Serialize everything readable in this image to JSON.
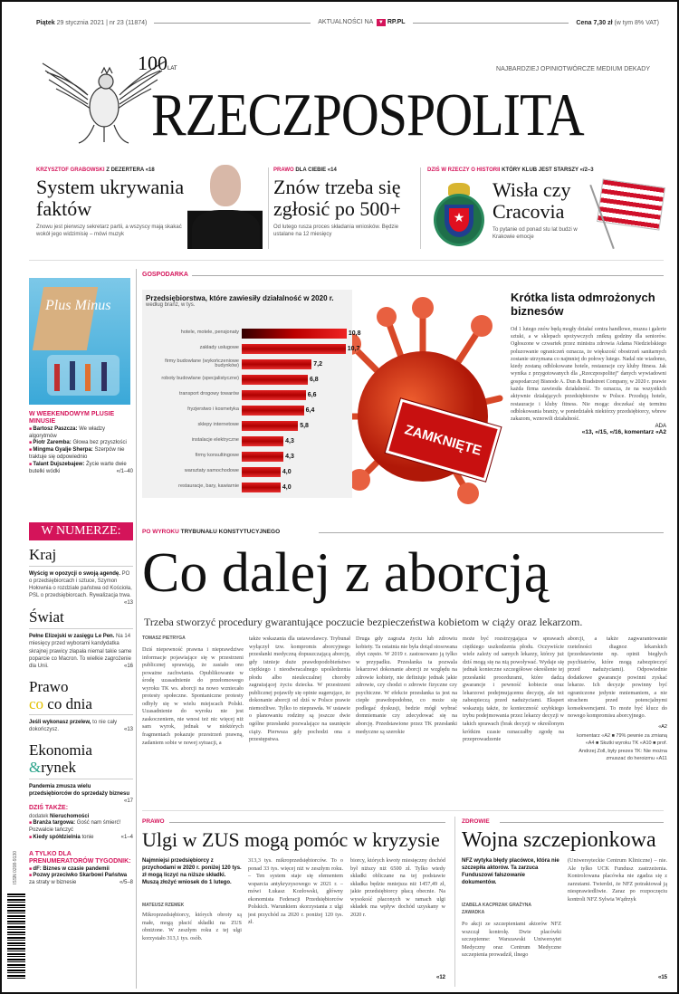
{
  "header": {
    "date_day": "Piątek",
    "date": "29 stycznia 2021",
    "issue": "nr 23 (11874)",
    "aktualnosci": "AKTUALNOŚCI NA",
    "rp": "RP.PL",
    "price_label": "Cena",
    "price": "7,30 zł",
    "vat": "(w tym 8% VAT)"
  },
  "masthead": {
    "title": "RZECZPOSPOLITA",
    "anniversary": "100",
    "anniversary_sub": "LAT",
    "tagline": "NAJBARDZIEJ OPINIOTWÓRCZE MEDIUM DEKADY"
  },
  "teasers": [
    {
      "kicker_accent": "KRZYSZTOF GRABOWSKI",
      "kicker": "Z DEZERTERA",
      "ref": "«18",
      "title": "System ukrywania faktów",
      "lead": "Znowu jest pierwszy sekretarz partii, a wszyscy mają skakać wokół jego widzimisię – mówi muzyk"
    },
    {
      "kicker_accent": "PRAWO",
      "kicker": "DLA CIEBIE",
      "ref": "«14",
      "title": "Znów trzeba się zgłosić po 500+",
      "lead": "Od lutego rusza proces składania wniosków. Będzie ustalane na 12 miesięcy"
    },
    {
      "kicker_accent": "DZIŚ W RZECZY O HISTORII",
      "kicker": "KTÓRY KLUB JEST STARSZY",
      "ref": "«/2–3",
      "title": "Wisła czy Cracovia",
      "lead": "To pytanie od ponad stu lat budzi w Krakowie emocje"
    }
  ],
  "sidebar": {
    "cover_title": "Plus Minus",
    "weekend_title": "W WEEKENDOWYM PLUSIE MINUSIE",
    "weekend_items": [
      {
        "name": "Bartosz Paszcza:",
        "text": "We władzy algorytmów"
      },
      {
        "name": "Piotr Zaremba:",
        "text": "Głowa bez przyszłości"
      },
      {
        "name": "Mingma Gyalje Sherpa:",
        "text": "Szerpów nie traktuje się odpowiednio"
      },
      {
        "name": "Talant Dujszebajew:",
        "text": "Życie warte dwie butelki wódki"
      }
    ],
    "weekend_ref": "«/1–40",
    "numerze": "W NUMERZE:",
    "sections": [
      {
        "title": "Kraj",
        "bold": "Wyścig w opozycji o swoją agendę.",
        "text": "PO o przedsiębiorcach i sztuce, Szymon Hołownia o rozdziale państwa od Kościoła, PSL o przedsiębiorcach. Rywalizacja trwa.",
        "ref": "«13"
      },
      {
        "title": "Świat",
        "bold": "Pełne Elizejski w zasięgu Le Pen.",
        "text": "Na 14 miesięcy przed wyborami kandydatka skrajnej prawicy złapała niemal takie same poparcie co Macron. To wielkie zagrożenie dla Unii.",
        "ref": "«16"
      },
      {
        "title": "Prawo",
        "title2": "co dnia",
        "bold": "Jeśli wykonasz przelew,",
        "text": "to nie cały dokończysz.",
        "ref": "«13"
      },
      {
        "title": "Ekonomia",
        "title2": "rynek",
        "amp": "&",
        "bold": "Pandemia zmusza wielu przedsiębiorców do sprzedaży biznesu",
        "text": "",
        "ref": "«17"
      }
    ],
    "dzis_title": "DZIŚ TAKŻE:",
    "dzis_sub": "dodatek",
    "dzis_sub_bold": "Nieruchomości",
    "dzis_items": [
      {
        "bold": "Branża targowa:",
        "text": "Gość nam śmierć! Pozwalcie tańczyć"
      },
      {
        "bold": "Kiedy spółdzielnia",
        "text": "tonie"
      }
    ],
    "dzis_ref": "«1–4",
    "sub_title": "A TYLKO DLA PRENUMERATORÓW TYGODNIK:",
    "sub_items": [
      {
        "bold": "dF: Biznes w czasie pandemii",
        "text": ""
      },
      {
        "bold": "Pozwy przeciwko Skarbowi Państwa",
        "text": "za straty w biznesie"
      }
    ],
    "sub_ref": "«/5–8"
  },
  "gospodarka": {
    "label": "GOSPODARKA",
    "sign": "ZAMKNIĘTE",
    "side_title": "Krótka lista odmrożonych biznesów",
    "side_body": "Od 1 lutego znów będą mogły działać centra handlowe, muzea i galerie sztuki, a w sklepach spożywczych znikną godziny dla seniorów. Ogłoszone w czwartek przez ministra zdrowia Adama Niedzielskiego poluzowanie ograniczeń oznacza, że większość obostrzeń sanitarnych zostanie utrzymana co najmniej do połowy lutego. Nadal nie wiadomo, kiedy zostaną odblokowane hotele, restauracje czy kluby fitness. Jak wynika z przygotowanych dla „Rzeczpospolitej” danych wywiadowni gospodarczej Bisnode A. Dun & Bradstreet Company, w 2020 r. prawie każda firma zawiesiła działalność. To oznacza, że na wszystkich aktywnie działających przedsiębiorstw w Polsce. Przodują hotele, restauracje i kluby fitness. Nie mogąc doczekać się terminu odblokowania branży, w poniedziałek niektórzy przedsiębiorcy, wbrew zakazom, wznowili działalność.",
    "side_author": "ADA",
    "side_refs": "«13, «/15, «/16, komentarz «A2"
  },
  "chart_data": {
    "type": "bar",
    "orientation": "horizontal",
    "title": "Przedsiębiorstwa, które zawiesiły działalność w 2020 r.",
    "subtitle": "według branż, w tys.",
    "categories": [
      "hotele, motele, pensjonaty",
      "zakłady usługowe",
      "firmy budowlane (wykończeniowe budynków)",
      "roboty budowlane (specjalistyczne)",
      "transport drogowy towarów",
      "fryzjerstwo i kosmetyka",
      "sklepy internetowe",
      "instalacje elektryczne",
      "firmy konsultingowe",
      "warsztaty samochodowe",
      "restauracje, bary, kawiarnie"
    ],
    "values": [
      10.8,
      10.7,
      7.2,
      6.8,
      6.6,
      6.4,
      5.8,
      4.3,
      4.3,
      4.0,
      4.0
    ],
    "value_labels": [
      "10,8",
      "10,7",
      "7,2",
      "6,8",
      "6,6",
      "6,4",
      "5,8",
      "4,3",
      "4,3",
      "4,0",
      "4,0"
    ],
    "xlim": [
      0,
      11
    ],
    "colors": {
      "bar": "#cc0000",
      "top_bar": "#400000"
    }
  },
  "lead": {
    "kicker_accent": "PO WYROKU",
    "kicker": "TRYBUNAŁU KONSTYTUCYJNEGO",
    "title": "Co dalej z aborcją",
    "dek": "Trzeba stworzyć procedury gwarantujące poczucie bezpieczeństwa kobietom w ciąży oraz lekarzom.",
    "author": "TOMASZ PIETRYGA",
    "columns": [
      "Dziś niepewność prawna i nieprawdziwe informacje pojawiające się w przestrzeni publicznej sprawiają, że zasiało ono poważne zachwiania. Opublikowanie w środę uzasadnienie do przełomowego wyroku TK ws. aborcji na nowo wzniecało protesty społeczne. Spontaniczne protesty odbyły się w wielu miejscach Polski. Uzasadnienie do wyroku nie jest zaskoczeniem, nie wnosi też nic więcej niż sam wyrok, jednak w niektórych fragmentach pokazuje przestrzeń prawną, zadaniem sobie w nowej sytuacji, a",
      "także wskazania dla ustawodawcy. Trybunał wyłączył tzw. kompromis aborcyjnego przesłanki medyczną dopuszczającą aborcję, gdy istnieje duże prawdopodobieństwo ciężkiego i nieodwracalnego upośledzenia płodu albo nieuleczalnej choroby zagrażającej życiu dziecka. W przestrzeni publicznej pojawiły się opinie sugerujące, że dokonanie aborcji od dziś w Polsce prawie niemożliwe. Tylko to nieprawda. W ustawie o planowaniu rodziny są jeszcze dwie ogólne przesłanki pozwalające na usunięcie ciąży. Pierwsza gdy pochodzi ona z przestępstwa.",
      "Druga gdy zagraża życiu lub zdrowiu kobiety. Ta ostatnia nie była dotąd stosowana zbyt często. W 2019 r. zastosowano ją tylko w przypadku. Przesłanka ta pozwala lekarzowi dokonanie aborcji ze względu na zdrowie kobiety, nie definiuje jednak jakie zdrowie, czy chodzi o zdrowie fizyczne czy psychiczne. W efekcie przesłanka ta jest na ciepłe prawdopodobne, co może się podlegać dyskusji, bedzie mógł wybrać domniemanie czy zdecydować się na aborcję. Przedstawione przez TK przesłanki medyczne są szerokie",
      "może być rozstrzygająca w sprawach ciężkiego uszkodzenia płodu. Oczywiście wiele zależy od samych lekarzy, którzy już dziś mogą się na nią powoływać. Wydaje się jednak konieczne szczegółowe określenie tej przesłanki procedurami, które dadzą gwarancje i pewność kobiecie oraz lekarzowi podejmującemu decyzję, ale też zabezpieczą przed nadużyciami. Ekspert wskazują także, że konieczność szybkiego trybu podejmowania przez lekarzy decyzji w takich sprawach (brak decyzji w określonym krótkim czasie oznaczałby zgodę na przeprowadzenie",
      "aborcji, a także zagwarantowanie rzetelności diagnoz lekarskich (przedstawienie np. opinii biegłych psychiatrów, które mogą zabezpieczyć przed nadużyciami). Odpowiednie dodatkowe gwarancje powinni zyskać lekarze. Ich decyzje powinny być ograniczone jedynie mniemaniem, a nie strachem przed potencjalnymi konsekwencjami. To może być klucz do nowego kompromisu aborcyjnego."
    ],
    "sign": "«A2",
    "refs": "komentarz «A2 ■ 79% pewnie za zmianą «A4 ■ Skutki wyroku TK «A10 ■ prof. Andrzej Zoll, były prezes TK: Nie można zmuszać do heroizmu «A11"
  },
  "prawo": {
    "label": "PRAWO",
    "title": "Ulgi w ZUS mogą pomóc w kryzysie",
    "lead": "Najmniejsi przedsiębiorcy z przychodami w 2020 r. poniżej 120 tys. zł mogą liczyć na niższe składki. Muszą złożyć wniosek do 1 lutego.",
    "author": "MATEUSZ RZEMEK",
    "columns": [
      "Mikroprzedsiębiorcy, których obroty są małe, mogą płacić składki na ZUS obniżone. W zeszłym roku z tej ulgi korzystało 313,1 tys. osób.",
      "313,3 tys. mikroprzedsiębiorców. To o ponad 33 tys. więcej niż w zeszłym roku. – Ten system staje się elementem wsparcia antykryzysowego w 2021 r. – mówi Łukasz Kozłowski, główny ekonomista Federacji Przedsiębiorców Polskich. Warunkiem skorzystania z ulgi jest przychód za 2020 r. poniżej 120 tys. zł.",
      "biorcy, których kwoty miesięczny dochód był niższy niż 6500 zł. Tylko wtedy składki obliczane na tej podstawie składka będzie mniejsza niż 1457,49 zł, jakie przedsiębiorcy płacą obecnie. Na wysokość płaconych w ramach ulgi składek ma wpływ dochód uzyskany w 2020 r."
    ],
    "ref": "«12"
  },
  "zdrowie": {
    "label": "ZDROWIE",
    "title": "Wojna szczepionkowa",
    "lead": "NFZ wytyka błędy placówce, która nie szczepiła aktorów. Ta zarzuca Funduszowi fałszowanie dokumentów.",
    "author": "IZABELA KACPRZAK GRAŻYNA ZAWADKA",
    "columns": [
      "Po akcji ze szczepieniami aktorów NFZ wszczął kontrolę. Dwie placówki szczepienne: Warszawski Uniwersytet Medyczny oraz Centrum Medyczne szczepienia prowadził, ilnego",
      "(Uniwersyteckie Centrum Kliniczne) – nie. Ale tylko UCK Fundusz zastrzeżenia. Kontrolowana placówka nie zgadza się z zarzutami. Twierdzi, że NFZ potraktował ją niesprawiedliwie. Zaraz po rozpoczęciu kontroli NFZ Sylwia Wądrzyk"
    ],
    "ref": "«15"
  },
  "barcode": {
    "label": "ISSN 0208-9130"
  }
}
